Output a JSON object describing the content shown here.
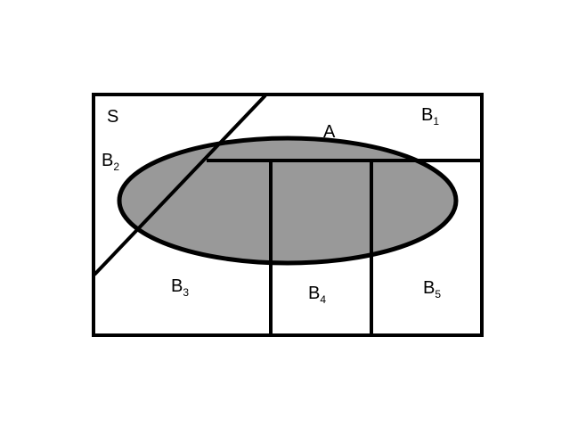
{
  "diagram": {
    "type": "venn-partition",
    "sample_space": {
      "label": "S"
    },
    "event": {
      "label": "A",
      "fill": "#999999"
    },
    "partitions": [
      {
        "id": "B1",
        "letter": "B",
        "index": "1"
      },
      {
        "id": "B2",
        "letter": "B",
        "index": "2"
      },
      {
        "id": "B3",
        "letter": "B",
        "index": "3"
      },
      {
        "id": "B4",
        "letter": "B",
        "index": "4"
      },
      {
        "id": "B5",
        "letter": "B",
        "index": "5"
      }
    ],
    "colors": {
      "stroke": "#000000",
      "background": "#ffffff",
      "shade": "#999999"
    }
  }
}
